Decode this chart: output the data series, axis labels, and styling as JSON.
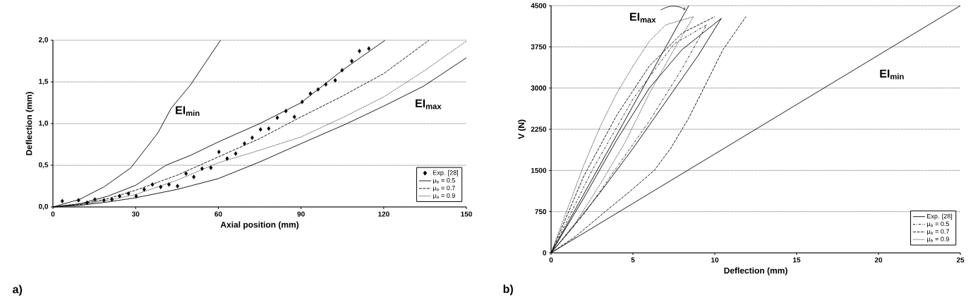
{
  "chart_data": [
    {
      "type": "line",
      "xlabel": "Axial position (mm)",
      "ylabel": "Deflection (mm)",
      "xlim": [
        0,
        150
      ],
      "xticks": [
        0,
        30,
        60,
        90,
        120,
        150
      ],
      "ylim": [
        0,
        2
      ],
      "yticks": [
        {
          "value": 0,
          "label": "0,0"
        },
        {
          "value": 0.5,
          "label": "0,5"
        },
        {
          "value": 1,
          "label": "1,0"
        },
        {
          "value": 1.5,
          "label": "1,5"
        },
        {
          "value": 2,
          "label": "2,0"
        }
      ],
      "grid": "y",
      "legend": "bottom right",
      "series": [
        {
          "name": "Exp. [28]",
          "type": "scatter",
          "marker": "diamond",
          "color": "#000000",
          "x": [
            3.4,
            9.3,
            12.4,
            15.2,
            18.5,
            21.4,
            24.2,
            27.4,
            30.2,
            33.1,
            36.1,
            39.1,
            42.1,
            45.2,
            48.3,
            51.1,
            54.1,
            57.3,
            60.2,
            63.2,
            66.3,
            69.5,
            72.3,
            75.3,
            78.3,
            81.4,
            84.5,
            87.6,
            90.4,
            93.4,
            96.2,
            99.0,
            102.4,
            104.9,
            108.4,
            111.2,
            114.6
          ],
          "values": [
            0.07,
            0.08,
            0.05,
            0.09,
            0.08,
            0.09,
            0.13,
            0.16,
            0.13,
            0.21,
            0.27,
            0.24,
            0.27,
            0.25,
            0.4,
            0.36,
            0.46,
            0.47,
            0.66,
            0.58,
            0.64,
            0.76,
            0.83,
            0.93,
            0.94,
            1.07,
            1.15,
            1.08,
            1.26,
            1.36,
            1.41,
            1.47,
            1.52,
            1.64,
            1.75,
            1.87,
            1.9
          ]
        },
        {
          "name": "μ$_{a}$ = 0.5",
          "line_style": "solid",
          "color": "#000000",
          "x": [
            0,
            10,
            20,
            30,
            41,
            50,
            60,
            75,
            90,
            105,
            120.5
          ],
          "values": [
            0,
            0.04,
            0.13,
            0.26,
            0.5,
            0.62,
            0.78,
            1.0,
            1.25,
            1.64,
            2.0
          ]
        },
        {
          "name": "μ$_{a}$ = 0.7",
          "line_style": "dashed",
          "color": "#000000",
          "x": [
            0,
            10,
            20,
            30,
            45,
            60,
            75,
            90,
            105,
            120,
            136.4
          ],
          "values": [
            0,
            0.03,
            0.1,
            0.2,
            0.38,
            0.6,
            0.82,
            1.08,
            1.33,
            1.6,
            2.0
          ]
        },
        {
          "name": "μ$_{a}$ = 0.9",
          "line_style": "dotted",
          "color": "#000000",
          "x": [
            0,
            10,
            20,
            30,
            45,
            60,
            75,
            90,
            105,
            120,
            135,
            150
          ],
          "values": [
            0,
            0.03,
            0.08,
            0.15,
            0.32,
            0.53,
            0.68,
            0.84,
            1.07,
            1.32,
            1.64,
            1.99
          ]
        },
        {
          "line_style": "solid",
          "color": "#000000",
          "x": [
            0,
            10,
            20,
            30,
            45,
            60,
            75,
            90,
            106,
            120,
            134.5,
            150
          ],
          "values": [
            0,
            0.02,
            0.06,
            0.11,
            0.21,
            0.34,
            0.54,
            0.76,
            0.99,
            1.21,
            1.45,
            1.79
          ]
        },
        {
          "line_style": "solid",
          "color": "#000000",
          "x": [
            0,
            9.6,
            18.5,
            28.3,
            38.1,
            43,
            49.8,
            60.8
          ],
          "values": [
            0,
            0.09,
            0.24,
            0.47,
            0.89,
            1.19,
            1.46,
            2.0
          ]
        }
      ],
      "annotations": [
        "EI$_{min}$",
        "EI$_{max}$",
        "a)"
      ]
    },
    {
      "type": "line",
      "xlabel": "Deflection (mm)",
      "ylabel": "V (N)",
      "xlim": [
        0,
        25
      ],
      "xticks": [
        0,
        5,
        10,
        15,
        20,
        25
      ],
      "ylim": [
        0,
        4500
      ],
      "yticks": [
        0,
        750,
        1500,
        2250,
        3000,
        3750,
        4500
      ],
      "grid": "y",
      "legend": "bottom right",
      "series": [
        {
          "name": "Exp. [28]",
          "line_style": "solid",
          "color": "#000000",
          "x": [
            0,
            2,
            4,
            6,
            8,
            10.4
          ],
          "values": [
            0,
            1000,
            2050,
            3000,
            3700,
            4270
          ]
        },
        {
          "name": "μ$_{a}$ = 0.5",
          "line_style": "dashdot",
          "color": "#000000",
          "x": [
            0,
            2.5,
            5,
            7.5,
            9.5
          ],
          "values": [
            0,
            1500,
            2800,
            3800,
            4150
          ]
        },
        {
          "name": "μ$_{a}$ = 0.7",
          "line_style": "dashed",
          "color": "#000000",
          "x": [
            0,
            2,
            4,
            6,
            8,
            10
          ],
          "values": [
            0,
            1400,
            2500,
            3400,
            4000,
            4300
          ]
        },
        {
          "name": "μ$_{a}$ = 0.9",
          "line_style": "dotted",
          "color": "#000000",
          "x": [
            0,
            1,
            2,
            3,
            4,
            5,
            6,
            7,
            8.7
          ],
          "values": [
            0,
            800,
            1600,
            2300,
            2900,
            3400,
            3850,
            4150,
            4300
          ]
        },
        {
          "line_style": "solid",
          "color": "#000000",
          "x": [
            0,
            1,
            3,
            5,
            7,
            9,
            10.4
          ],
          "values": [
            0,
            350,
            1100,
            1900,
            2750,
            3600,
            4270
          ]
        },
        {
          "line_style": "dashdot",
          "color": "#000000",
          "x": [
            0,
            2,
            4,
            6,
            8,
            9.5
          ],
          "values": [
            0,
            700,
            1550,
            2400,
            3350,
            4150
          ]
        },
        {
          "line_style": "dashed",
          "color": "#000000",
          "x": [
            0,
            1.5,
            3.3,
            4.7,
            6.3,
            7.3,
            8.4,
            9.5,
            10.5,
            11.9
          ],
          "values": [
            0,
            300,
            750,
            1090,
            1500,
            1900,
            2450,
            3100,
            3700,
            4300
          ]
        },
        {
          "line_style": "dotted",
          "color": "#000000",
          "x": [
            0,
            1.5,
            3,
            4.5,
            6,
            7.5,
            8.7
          ],
          "values": [
            0,
            550,
            1250,
            2000,
            2900,
            3700,
            4300
          ]
        },
        {
          "line_style": "solid",
          "color": "#000000",
          "x": [
            0,
            8.41
          ],
          "values": [
            0,
            4500
          ]
        },
        {
          "line_style": "solid",
          "color": "#000000",
          "x": [
            0,
            25
          ],
          "values": [
            0,
            4500
          ]
        }
      ],
      "annotations": [
        {
          "text": "EI$_{max}$",
          "x": 8.2,
          "y": 4430
        },
        "EI$_{min}$",
        "b)"
      ]
    }
  ]
}
